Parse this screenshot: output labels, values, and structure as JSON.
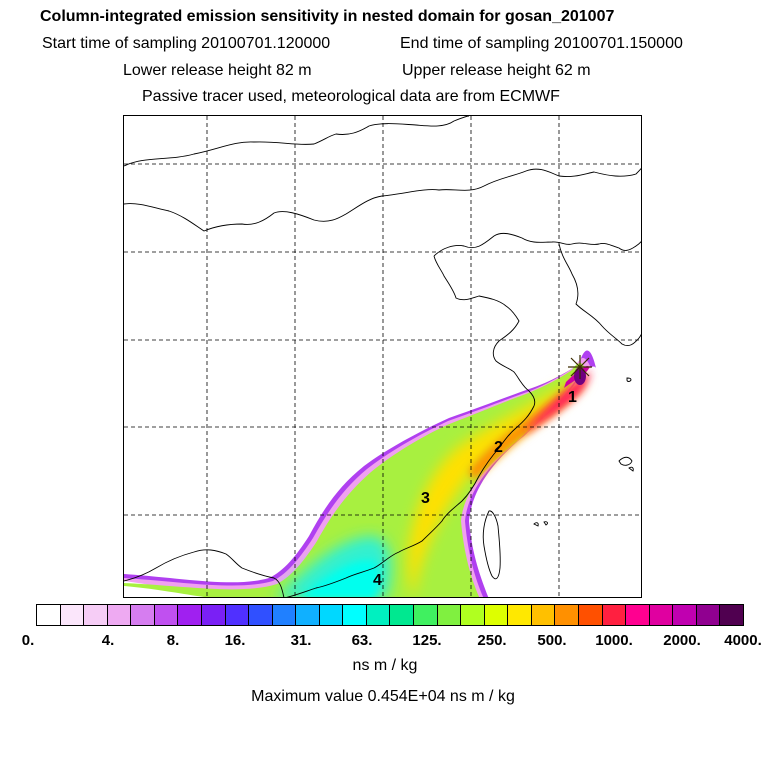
{
  "header": {
    "title": "Column-integrated emission sensitivity in nested domain for gosan_201007",
    "start_label": "Start time of sampling 20100701.120000",
    "end_label": "End time of sampling 20100701.150000",
    "lower_label": "Lower release height   82 m",
    "upper_label": "Upper release height   62 m",
    "tracer_label": "Passive tracer used, meteorological data are from ECMWF"
  },
  "map": {
    "markers": [
      "1",
      "2",
      "3",
      "4"
    ]
  },
  "legend": {
    "colors": [
      "#ffffff",
      "#fbe6fb",
      "#f6cdf6",
      "#eeaaf2",
      "#d67df0",
      "#c050f0",
      "#a020f0",
      "#7a20f5",
      "#5030ff",
      "#3050ff",
      "#2080ff",
      "#10b0ff",
      "#00d8ff",
      "#00ffff",
      "#00f0c0",
      "#00e890",
      "#40f060",
      "#80f040",
      "#b0ff20",
      "#ddff00",
      "#ffe800",
      "#ffc000",
      "#ff9000",
      "#ff5000",
      "#ff2040",
      "#ff0090",
      "#e000a0",
      "#c000b0",
      "#900090",
      "#500050"
    ],
    "ticks": [
      "0.",
      "4.",
      "8.",
      "16.",
      "31.",
      "63.",
      "125.",
      "250.",
      "500.",
      "1000.",
      "2000.",
      "4000."
    ],
    "unit": "ns m / kg",
    "max_label": "Maximum value  0.454E+04 ns m / kg"
  }
}
